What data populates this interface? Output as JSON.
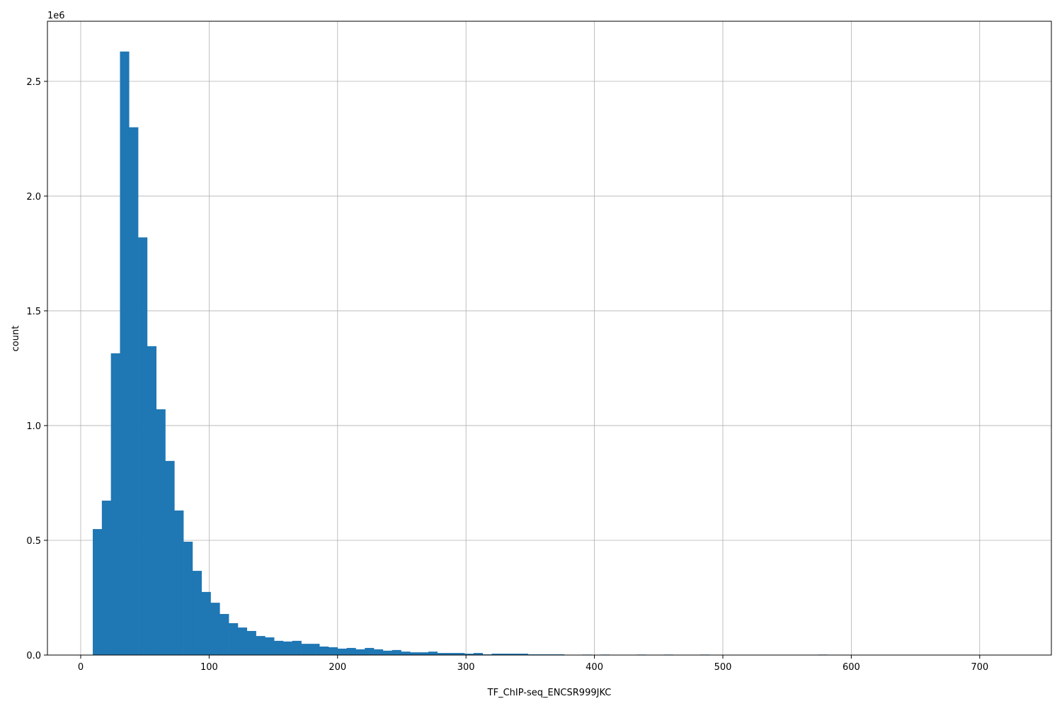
{
  "chart_data": {
    "type": "bar",
    "subtype": "histogram",
    "title": "",
    "xlabel": "TF_ChIP-seq_ENCSR999JKC",
    "ylabel": "count",
    "y_offset_label": "1e6",
    "xlim": [
      -25.9,
      755.8
    ],
    "ylim": [
      0,
      2762000
    ],
    "grid": true,
    "color": "#1f77b4",
    "bin_start": 9.4,
    "bin_width": 7.06,
    "x_ticks": [
      0,
      100,
      200,
      300,
      400,
      500,
      600,
      700
    ],
    "x_tick_labels": [
      "0",
      "100",
      "200",
      "300",
      "400",
      "500",
      "600",
      "700"
    ],
    "y_ticks": [
      0,
      500000,
      1000000,
      1500000,
      2000000,
      2500000
    ],
    "y_tick_labels": [
      "0.0",
      "0.5",
      "1.0",
      "1.5",
      "2.0",
      "2.5"
    ],
    "values": [
      549000,
      673000,
      1315000,
      2630000,
      2300000,
      1820000,
      1346000,
      1071000,
      846000,
      630000,
      494000,
      367000,
      275000,
      228000,
      179000,
      139000,
      120000,
      105000,
      83000,
      77000,
      62000,
      59000,
      62000,
      49000,
      49000,
      37000,
      34000,
      28000,
      31000,
      25000,
      31000,
      25000,
      19000,
      22000,
      15000,
      12000,
      12000,
      15000,
      9000,
      9000,
      9000,
      6000,
      9000,
      3000,
      6000,
      6000,
      6000,
      6000,
      3000,
      3000,
      3000,
      3000,
      0,
      0,
      2000,
      0,
      2000,
      0,
      0,
      0,
      2000,
      0,
      0,
      2000,
      0,
      0,
      0,
      2000,
      0,
      0,
      0,
      0,
      0,
      0,
      0,
      0,
      0,
      0,
      0,
      0,
      2000,
      0,
      0,
      0,
      0,
      0,
      0,
      0,
      0,
      0,
      0,
      0,
      0,
      0,
      0,
      0,
      0,
      0,
      0,
      0
    ]
  }
}
